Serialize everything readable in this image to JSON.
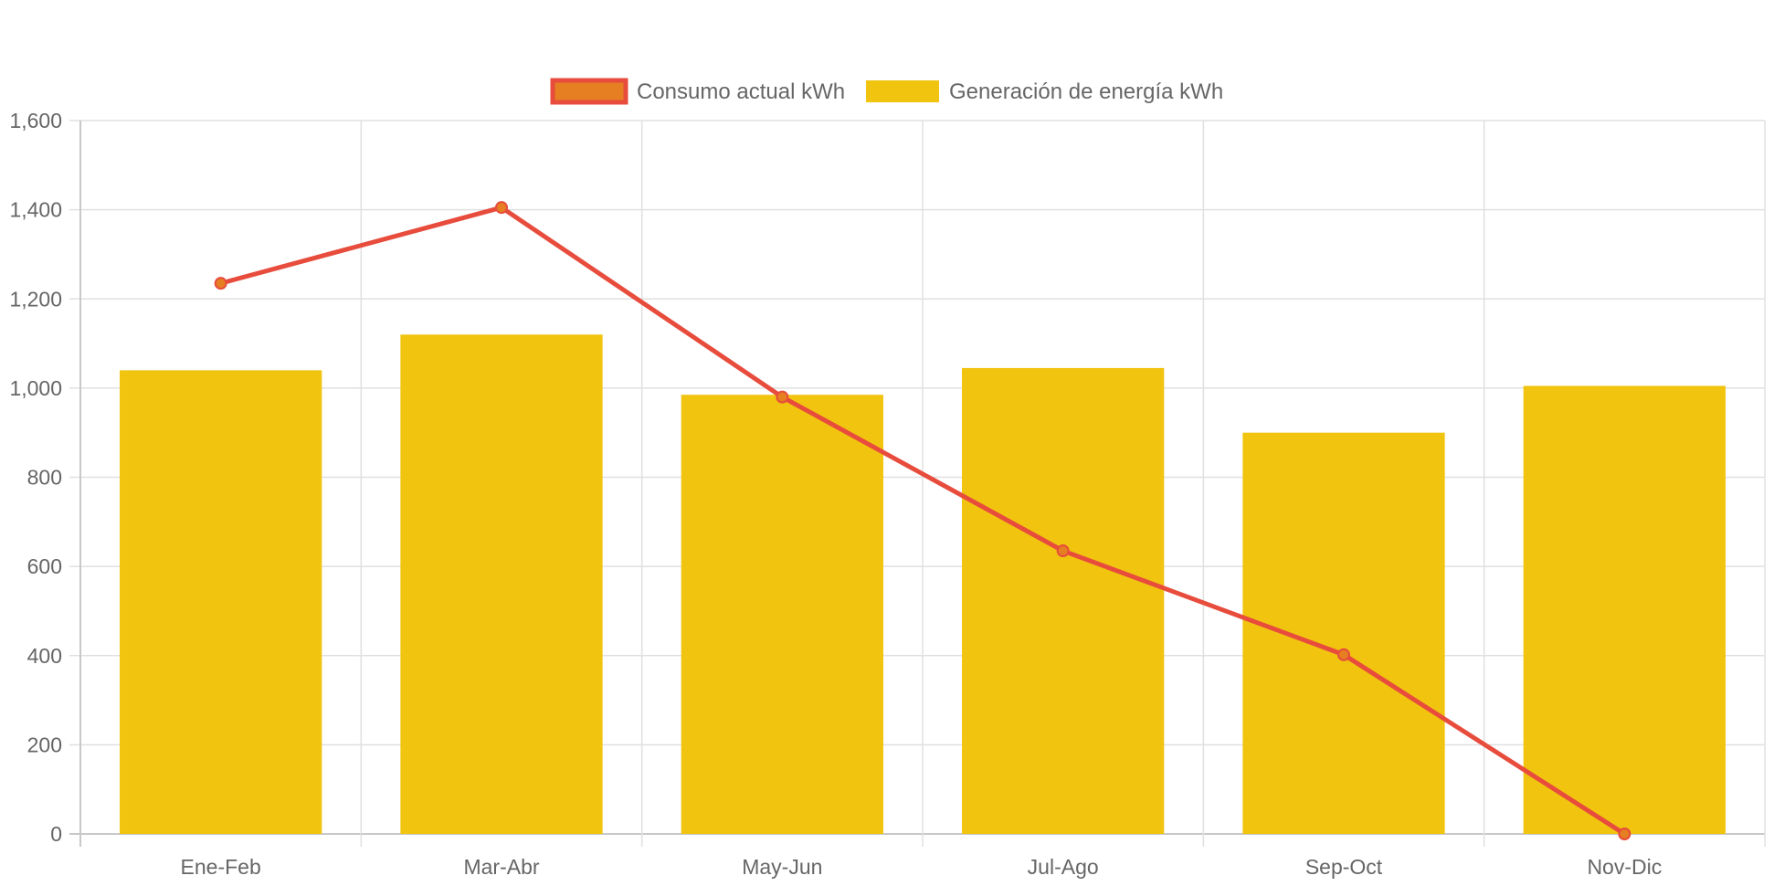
{
  "chart_data": {
    "type": "bar",
    "categories": [
      "Ene-Feb",
      "Mar-Abr",
      "May-Jun",
      "Jul-Ago",
      "Sep-Oct",
      "Nov-Dic"
    ],
    "series": [
      {
        "name": "Consumo actual kWh",
        "type": "line",
        "values": [
          1235,
          1405,
          980,
          635,
          402,
          0
        ],
        "color": "#e74c3c",
        "point_color": "#e67e22"
      },
      {
        "name": "Generación de energía kWh",
        "type": "bar",
        "values": [
          1040,
          1120,
          985,
          1045,
          900,
          1005
        ],
        "color": "#f1c40f"
      }
    ],
    "y_ticks": [
      "0",
      "200",
      "400",
      "600",
      "800",
      "1,000",
      "1,200",
      "1,400",
      "1,600"
    ],
    "ylim": [
      0,
      1600
    ],
    "grid": true,
    "legend_position": "top-center"
  },
  "colors": {
    "grid": "#e0e0e0",
    "axis": "#c8c8c8",
    "text": "#666666"
  }
}
